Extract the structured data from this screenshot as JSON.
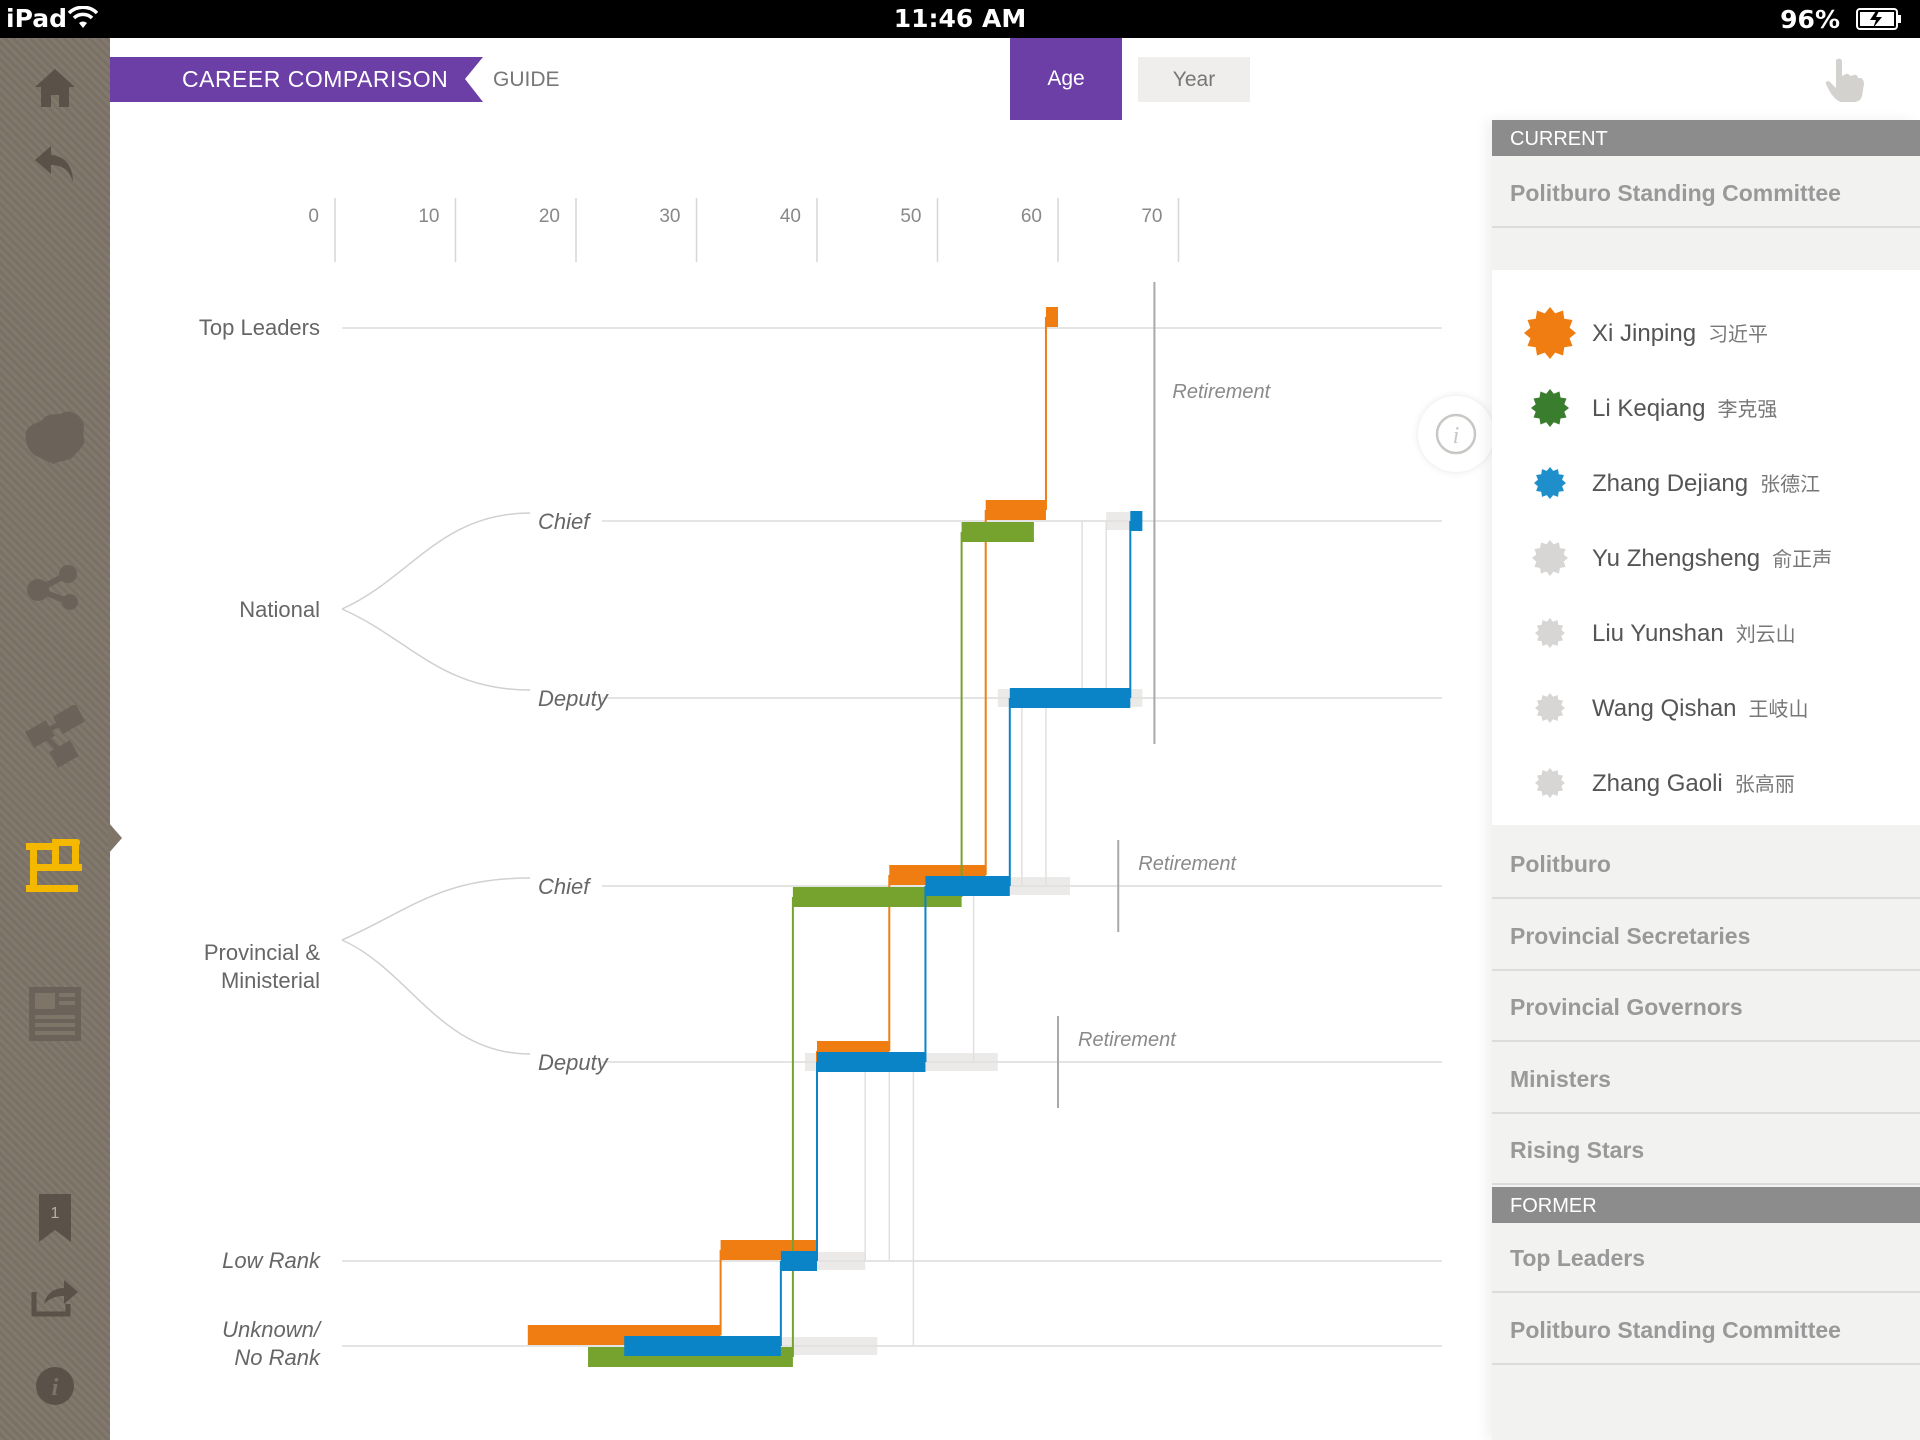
{
  "status": {
    "device": "iPad",
    "time": "11:46 AM",
    "battery": "96%"
  },
  "header": {
    "title": "CAREER COMPARISON",
    "guide": "GUIDE",
    "toggle": {
      "age": "Age",
      "year": "Year"
    }
  },
  "sidebar": {
    "bookmark_count": "1"
  },
  "chart_data": {
    "type": "step-line",
    "x_axis": {
      "ticks": [
        "0",
        "10",
        "20",
        "30",
        "40",
        "50",
        "60",
        "70"
      ],
      "range": [
        0,
        75
      ]
    },
    "rank_levels": {
      "top": "Top Leaders",
      "national": "National",
      "national_chief": "Chief",
      "national_deputy": "Deputy",
      "provincial": "Provincial & Ministerial",
      "prov_chief": "Chief",
      "prov_deputy": "Deputy",
      "low": "Low Rank",
      "unknown": "Unknown/ No Rank"
    },
    "retirement_label": "Retirement",
    "retirement_markers": [
      {
        "level": "national",
        "age": 68
      },
      {
        "level": "prov_chief",
        "age": 65
      },
      {
        "level": "prov_deputy",
        "age": 60
      }
    ],
    "series": [
      {
        "name": "Xi Jinping",
        "color": "#f07d12",
        "segments": [
          {
            "level": "unknown",
            "offset": -1,
            "start": 16,
            "end": 32
          },
          {
            "level": "low",
            "offset": -1,
            "start": 32,
            "end": 40
          },
          {
            "level": "prov_deputy",
            "offset": -1,
            "start": 40,
            "end": 46
          },
          {
            "level": "prov_chief",
            "offset": -1,
            "start": 46,
            "end": 54
          },
          {
            "level": "national_chief",
            "offset": -1,
            "start": 54,
            "end": 59
          },
          {
            "level": "top",
            "offset": -1,
            "start": 59,
            "end": 60
          }
        ]
      },
      {
        "name": "Li Keqiang",
        "color": "#76a22e",
        "segments": [
          {
            "level": "unknown",
            "offset": 1,
            "start": 21,
            "end": 38
          },
          {
            "level": "prov_chief",
            "offset": 1,
            "start": 38,
            "end": 52
          },
          {
            "level": "national_chief",
            "offset": 1,
            "start": 52,
            "end": 58
          }
        ]
      },
      {
        "name": "Zhang Dejiang",
        "color": "#0a84c6",
        "segments": [
          {
            "level": "unknown",
            "offset": 0,
            "start": 24,
            "end": 37
          },
          {
            "level": "low",
            "offset": 0,
            "start": 37,
            "end": 40
          },
          {
            "level": "prov_deputy",
            "offset": 0,
            "start": 40,
            "end": 49
          },
          {
            "level": "prov_chief",
            "offset": 0,
            "start": 49,
            "end": 56
          },
          {
            "level": "national_deputy",
            "offset": 0,
            "start": 56,
            "end": 66
          },
          {
            "level": "national_chief",
            "offset": 0,
            "start": 66,
            "end": 67
          }
        ]
      }
    ]
  },
  "panel": {
    "current_header": "CURRENT",
    "selected_category": "Politburo Standing Committee",
    "members": [
      {
        "name": "Xi Jinping",
        "chinese": "习近平",
        "color": "#f07d12",
        "size": 52
      },
      {
        "name": "Li Keqiang",
        "chinese": "李克强",
        "color": "#3b7d2e",
        "size": 38
      },
      {
        "name": "Zhang Dejiang",
        "chinese": "张德江",
        "color": "#1e8fcb",
        "size": 32
      },
      {
        "name": "Yu Zhengsheng",
        "chinese": "俞正声",
        "color": "#d8d6d4",
        "size": 36
      },
      {
        "name": "Liu Yunshan",
        "chinese": "刘云山",
        "color": "#d8d6d4",
        "size": 30
      },
      {
        "name": "Wang Qishan",
        "chinese": "王岐山",
        "color": "#d8d6d4",
        "size": 30
      },
      {
        "name": "Zhang Gaoli",
        "chinese": "张高丽",
        "color": "#d8d6d4",
        "size": 30
      }
    ],
    "current_categories": [
      "Politburo",
      "Provincial Secretaries",
      "Provincial Governors",
      "Ministers",
      "Rising Stars"
    ],
    "former_header": "FORMER",
    "former_categories": [
      "Top Leaders",
      "Politburo Standing Committee"
    ]
  }
}
